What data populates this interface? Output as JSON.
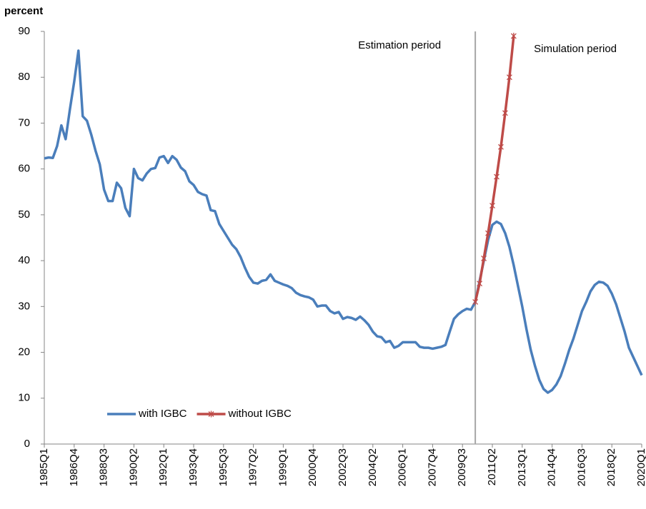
{
  "chart_data": {
    "type": "line",
    "y_label": "percent",
    "annotations": [
      "Estimation period",
      "Simulation period"
    ],
    "categories": [
      "1985Q1",
      null,
      null,
      null,
      null,
      null,
      null,
      "1986Q4",
      null,
      null,
      null,
      null,
      null,
      null,
      "1988Q3",
      null,
      null,
      null,
      null,
      null,
      null,
      "1990Q2",
      null,
      null,
      null,
      null,
      null,
      null,
      "1992Q1",
      null,
      null,
      null,
      null,
      null,
      null,
      "1993Q4",
      null,
      null,
      null,
      null,
      null,
      null,
      "1995Q3",
      null,
      null,
      null,
      null,
      null,
      null,
      "1997Q2",
      null,
      null,
      null,
      null,
      null,
      null,
      "1999Q1",
      null,
      null,
      null,
      null,
      null,
      null,
      "2000Q4",
      null,
      null,
      null,
      null,
      null,
      null,
      "2002Q3",
      null,
      null,
      null,
      null,
      null,
      null,
      "2004Q2",
      null,
      null,
      null,
      null,
      null,
      null,
      "2006Q1",
      null,
      null,
      null,
      null,
      null,
      null,
      "2007Q4",
      null,
      null,
      null,
      null,
      null,
      null,
      "2009Q3",
      null,
      null,
      null,
      null,
      null,
      null,
      "2011Q2",
      null,
      null,
      null,
      null,
      null,
      null,
      "2013Q1",
      null,
      null,
      null,
      null,
      null,
      null,
      "2014Q4",
      null,
      null,
      null,
      null,
      null,
      null,
      "2016Q3",
      null,
      null,
      null,
      null,
      null,
      null,
      "2018Q2",
      null,
      null,
      null,
      null,
      null,
      null,
      "2020Q1"
    ],
    "series": [
      {
        "name": "with IGBC",
        "color": "#4a7ebb",
        "marker": "none",
        "values": [
          62.3,
          62.5,
          62.4,
          65,
          69.5,
          66.5,
          73,
          79,
          85.8,
          71.5,
          70.5,
          67.5,
          64,
          61,
          55.5,
          53,
          53,
          57,
          55.8,
          51.5,
          49.7,
          60,
          58,
          57.5,
          59,
          60,
          60.2,
          62.5,
          62.8,
          61.3,
          62.8,
          62,
          60.3,
          59.5,
          57.3,
          56.5,
          55,
          54.5,
          54.2,
          51,
          50.8,
          48,
          46.5,
          45,
          43.5,
          42.5,
          40.8,
          38.5,
          36.5,
          35.2,
          35,
          35.6,
          35.8,
          37,
          35.6,
          35.2,
          34.8,
          34.5,
          34,
          33,
          32.5,
          32.2,
          32,
          31.5,
          30,
          30.2,
          30.2,
          29,
          28.5,
          28.8,
          27.3,
          27.7,
          27.5,
          27.1,
          27.8,
          27,
          26,
          24.5,
          23.5,
          23.3,
          22.2,
          22.5,
          21,
          21.4,
          22.2,
          22.2,
          22.2,
          22.2,
          21.2,
          21,
          21,
          20.8,
          21,
          21.2,
          21.6,
          24.5,
          27.3,
          28.3,
          29,
          29.5,
          29.3,
          31,
          35.5,
          40,
          44.5,
          47.8,
          48.5,
          48,
          46,
          43,
          39,
          34.5,
          30,
          25,
          20.5,
          17,
          14,
          12,
          11.2,
          11.8,
          13,
          14.8,
          17.5,
          20.5,
          23,
          26,
          29,
          31,
          33.3,
          34.7,
          35.4,
          35.2,
          34.5,
          32.8,
          30.5,
          27.5,
          24.5,
          21,
          19,
          17,
          15
        ]
      },
      {
        "name": "without IGBC",
        "color": "#be4b48",
        "marker": "asterisk",
        "values": [
          null,
          null,
          null,
          null,
          null,
          null,
          null,
          null,
          null,
          null,
          null,
          null,
          null,
          null,
          null,
          null,
          null,
          null,
          null,
          null,
          null,
          null,
          null,
          null,
          null,
          null,
          null,
          null,
          null,
          null,
          null,
          null,
          null,
          null,
          null,
          null,
          null,
          null,
          null,
          null,
          null,
          null,
          null,
          null,
          null,
          null,
          null,
          null,
          null,
          null,
          null,
          null,
          null,
          null,
          null,
          null,
          null,
          null,
          null,
          null,
          null,
          null,
          null,
          null,
          null,
          null,
          null,
          null,
          null,
          null,
          null,
          null,
          null,
          null,
          null,
          null,
          null,
          null,
          null,
          null,
          null,
          null,
          null,
          null,
          null,
          null,
          null,
          null,
          null,
          null,
          null,
          null,
          null,
          null,
          null,
          null,
          null,
          null,
          null,
          null,
          null,
          31,
          35,
          40.5,
          46,
          52,
          58.3,
          64.8,
          72.2,
          80,
          89,
          null,
          null,
          null,
          null,
          null,
          null,
          null,
          null,
          null,
          null,
          null,
          null,
          null,
          null,
          null,
          null,
          null,
          null,
          null,
          null,
          null,
          null,
          null,
          null,
          null,
          null,
          null,
          null,
          null,
          null
        ]
      }
    ],
    "ylim": [
      0,
      90
    ],
    "yticks": [
      0,
      10,
      20,
      30,
      40,
      50,
      60,
      70,
      80,
      90
    ],
    "grid": false,
    "legend": "lower left"
  }
}
